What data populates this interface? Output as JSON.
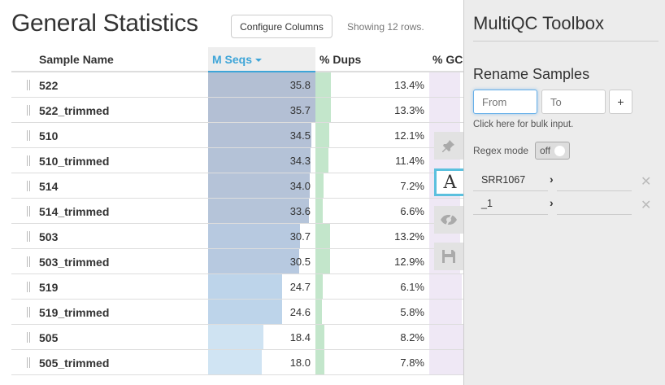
{
  "title": "General Statistics",
  "configure_label": "Configure Columns",
  "showing": "Showing 12 rows.",
  "columns": {
    "name": "Sample Name",
    "mseqs": "M Seqs",
    "dups": "% Dups",
    "gc": "% GC"
  },
  "sort": {
    "column": "M Seqs",
    "direction": "descending"
  },
  "scales": {
    "mseqs_max": 35.8,
    "dups_max": 100
  },
  "colors": {
    "accent": "#3ea5d8",
    "dups_bar": "#c3e6cb",
    "gc_bar": "#efe8f5",
    "active_tool": "#5bc0de"
  },
  "rows": [
    {
      "name": "522",
      "mseqs": "35.8",
      "dups": "13.4%",
      "mseqs_color": "#b3bfd3",
      "gc_fill": 0.9
    },
    {
      "name": "522_trimmed",
      "mseqs": "35.7",
      "dups": "13.3%",
      "mseqs_color": "#b3bfd4",
      "gc_fill": 0.9
    },
    {
      "name": "510",
      "mseqs": "34.5",
      "dups": "12.1%",
      "mseqs_color": "#b4c1d6",
      "gc_fill": 0.9
    },
    {
      "name": "510_trimmed",
      "mseqs": "34.3",
      "dups": "11.4%",
      "mseqs_color": "#b4c2d7",
      "gc_fill": 0.9
    },
    {
      "name": "514",
      "mseqs": "34.0",
      "dups": "7.2%",
      "mseqs_color": "#b5c3d8",
      "gc_fill": 0.9
    },
    {
      "name": "514_trimmed",
      "mseqs": "33.6",
      "dups": "6.6%",
      "mseqs_color": "#b5c4d9",
      "gc_fill": 0.9
    },
    {
      "name": "503",
      "mseqs": "30.7",
      "dups": "13.2%",
      "mseqs_color": "#b7c9e0",
      "gc_fill": 0.9
    },
    {
      "name": "503_trimmed",
      "mseqs": "30.5",
      "dups": "12.9%",
      "mseqs_color": "#b7c9e0",
      "gc_fill": 0.9
    },
    {
      "name": "519",
      "mseqs": "24.7",
      "dups": "6.1%",
      "mseqs_color": "#bdd4ea",
      "gc_fill": 0.95
    },
    {
      "name": "519_trimmed",
      "mseqs": "24.6",
      "dups": "5.8%",
      "mseqs_color": "#bdd4ea",
      "gc_fill": 0.95
    },
    {
      "name": "505",
      "mseqs": "18.4",
      "dups": "8.2%",
      "mseqs_color": "#cfe3f2",
      "gc_fill": 1.0
    },
    {
      "name": "505_trimmed",
      "mseqs": "18.0",
      "dups": "7.8%",
      "mseqs_color": "#d0e4f3",
      "gc_fill": 1.0
    }
  ],
  "toolbox": {
    "title": "MultiQC Toolbox",
    "section": "Rename Samples",
    "from_placeholder": "From",
    "to_placeholder": "To",
    "add_label": "+",
    "bulk_link": "Click here for bulk input.",
    "regex_label": "Regex mode",
    "regex_state": "off",
    "renames": [
      {
        "from": "SRR1067",
        "to": ""
      },
      {
        "from": "_1",
        "to": ""
      }
    ],
    "tools": [
      {
        "icon": "pin-icon"
      },
      {
        "icon": "rename-icon",
        "label": "A",
        "active": true
      },
      {
        "icon": "eye-slash-icon"
      },
      {
        "icon": "save-icon"
      }
    ]
  }
}
